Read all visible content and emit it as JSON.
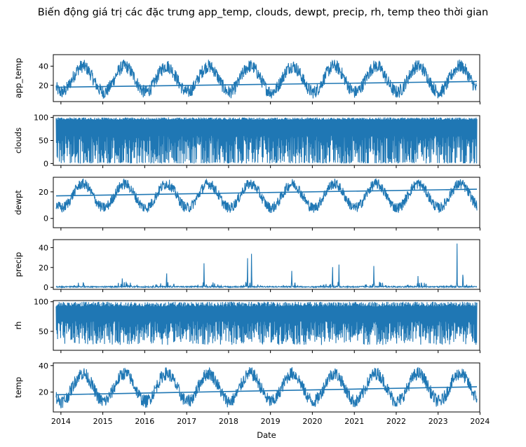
{
  "figure": {
    "title": "Biến động giá trị các đặc trưng app_temp, clouds, dewpt, precip, rh, temp theo thời gian",
    "xlabel": "Date",
    "line_color": "#1f77b4"
  },
  "chart_data": [
    {
      "type": "line",
      "ylabel": "app_temp",
      "yticks": [
        20,
        40
      ],
      "ylim": [
        3,
        52
      ],
      "x_range": [
        "2013-11-20",
        "2023-12-05"
      ],
      "xticks": [
        "2014",
        "2015",
        "2016",
        "2017",
        "2018",
        "2019",
        "2020",
        "2021",
        "2022",
        "2023",
        "2024"
      ],
      "series": [
        {
          "seasonal_min": 13,
          "seasonal_max": 40,
          "noise": 7,
          "trend_line": [
            18,
            24
          ]
        }
      ]
    },
    {
      "type": "line",
      "ylabel": "clouds",
      "yticks": [
        0,
        50,
        100
      ],
      "ylim": [
        -4,
        104
      ],
      "x_range": [
        "2013-11-20",
        "2023-12-05"
      ],
      "xticks": [
        "2014",
        "2015",
        "2016",
        "2017",
        "2018",
        "2019",
        "2020",
        "2021",
        "2022",
        "2023",
        "2024"
      ],
      "series": [
        {
          "min": 0,
          "max": 100,
          "typical_low": 40
        }
      ]
    },
    {
      "type": "line",
      "ylabel": "dewpt",
      "yticks": [
        0,
        20
      ],
      "ylim": [
        -7,
        31
      ],
      "x_range": [
        "2013-11-20",
        "2023-12-05"
      ],
      "xticks": [
        "2014",
        "2015",
        "2016",
        "2017",
        "2018",
        "2019",
        "2020",
        "2021",
        "2022",
        "2023",
        "2024"
      ],
      "series": [
        {
          "seasonal_min": 8,
          "seasonal_max": 26,
          "noise": 4,
          "trend_line": [
            17,
            22
          ]
        }
      ]
    },
    {
      "type": "line",
      "ylabel": "precip",
      "yticks": [
        0,
        20,
        40
      ],
      "ylim": [
        -2,
        48
      ],
      "x_range": [
        "2013-11-20",
        "2023-12-05"
      ],
      "xticks": [
        "2014",
        "2015",
        "2016",
        "2017",
        "2018",
        "2019",
        "2020",
        "2021",
        "2022",
        "2023",
        "2024"
      ],
      "series": [
        {
          "base": 0,
          "peaks": [
            {
              "date": "2014-07-15",
              "value": 8
            },
            {
              "date": "2015-06-20",
              "value": 12
            },
            {
              "date": "2016-07-10",
              "value": 20
            },
            {
              "date": "2017-06-01",
              "value": 27
            },
            {
              "date": "2018-06-15",
              "value": 35
            },
            {
              "date": "2018-07-20",
              "value": 40
            },
            {
              "date": "2019-07-05",
              "value": 20
            },
            {
              "date": "2020-06-25",
              "value": 27
            },
            {
              "date": "2020-08-20",
              "value": 25
            },
            {
              "date": "2021-06-20",
              "value": 25
            },
            {
              "date": "2022-07-10",
              "value": 13
            },
            {
              "date": "2023-06-15",
              "value": 46
            },
            {
              "date": "2023-08-05",
              "value": 20
            }
          ]
        }
      ]
    },
    {
      "type": "line",
      "ylabel": "rh",
      "yticks": [
        50,
        100
      ],
      "ylim": [
        18,
        102
      ],
      "x_range": [
        "2013-11-20",
        "2023-12-05"
      ],
      "xticks": [
        "2014",
        "2015",
        "2016",
        "2017",
        "2018",
        "2019",
        "2020",
        "2021",
        "2022",
        "2023",
        "2024"
      ],
      "series": [
        {
          "min": 25,
          "max": 100,
          "typical_low": 55
        }
      ]
    },
    {
      "type": "line",
      "ylabel": "temp",
      "yticks": [
        20,
        40
      ],
      "ylim": [
        5,
        42
      ],
      "x_range": [
        "2013-11-20",
        "2023-12-05"
      ],
      "xticks": [
        "2014",
        "2015",
        "2016",
        "2017",
        "2018",
        "2019",
        "2020",
        "2021",
        "2022",
        "2023",
        "2024"
      ],
      "series": [
        {
          "seasonal_min": 13,
          "seasonal_max": 34,
          "noise": 5,
          "trend_line": [
            18,
            24
          ]
        }
      ]
    }
  ]
}
